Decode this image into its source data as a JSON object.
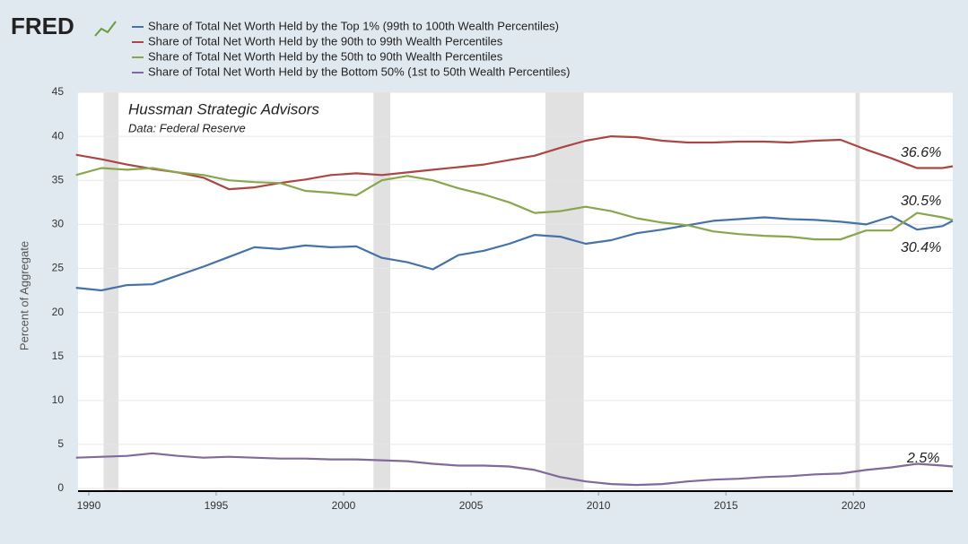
{
  "brand": "FRED",
  "chart_data": {
    "type": "line",
    "legend": "top",
    "subtitle": "Hussman Strategic Advisors",
    "source": "Data: Federal Reserve",
    "ylabel": "Percent of Aggregate",
    "x": [
      1989.5,
      1990.5,
      1991.5,
      1992.5,
      1993.5,
      1994.5,
      1995.5,
      1996.5,
      1997.5,
      1998.5,
      1999.5,
      2000.5,
      2001.5,
      2002.5,
      2003.5,
      2004.5,
      2005.5,
      2006.5,
      2007.5,
      2008.5,
      2009.5,
      2010.5,
      2011.5,
      2012.5,
      2013.5,
      2014.5,
      2015.5,
      2016.5,
      2017.5,
      2018.5,
      2019.5,
      2020.5,
      2021.5,
      2022.5,
      2023.5,
      2023.9
    ],
    "series": [
      {
        "name": "Share of Total Net Worth Held by the Top 1% (99th to 100th Wealth Percentiles)",
        "color": "#4572a7",
        "values": [
          22.8,
          22.5,
          23.1,
          23.2,
          24.2,
          25.2,
          26.3,
          27.4,
          27.2,
          27.6,
          27.4,
          27.5,
          26.2,
          25.7,
          24.9,
          26.5,
          27.0,
          27.8,
          28.8,
          28.6,
          27.8,
          28.2,
          29.0,
          29.4,
          29.9,
          30.4,
          30.6,
          30.8,
          30.6,
          30.5,
          30.3,
          30.0,
          30.9,
          29.4,
          29.8,
          30.4
        ]
      },
      {
        "name": "Share of Total Net Worth Held by the 90th to 99th Wealth Percentiles",
        "color": "#aa4643",
        "values": [
          37.9,
          37.4,
          36.8,
          36.3,
          35.9,
          35.3,
          34.0,
          34.2,
          34.7,
          35.1,
          35.6,
          35.8,
          35.6,
          35.9,
          36.2,
          36.5,
          36.8,
          37.3,
          37.8,
          38.7,
          39.5,
          40.0,
          39.9,
          39.5,
          39.3,
          39.3,
          39.4,
          39.4,
          39.3,
          39.5,
          39.6,
          38.5,
          37.5,
          36.4,
          36.4,
          36.6
        ]
      },
      {
        "name": "Share of Total Net Worth Held by the 50th to 90th Wealth Percentiles",
        "color": "#89a54e",
        "values": [
          35.6,
          36.4,
          36.2,
          36.4,
          35.9,
          35.6,
          35.0,
          34.8,
          34.7,
          33.8,
          33.6,
          33.3,
          35.0,
          35.5,
          35.0,
          34.1,
          33.4,
          32.5,
          31.3,
          31.5,
          32.0,
          31.5,
          30.7,
          30.2,
          29.9,
          29.2,
          28.9,
          28.7,
          28.6,
          28.3,
          28.3,
          29.3,
          29.3,
          31.3,
          30.8,
          30.5
        ]
      },
      {
        "name": "Share of Total Net Worth Held by the Bottom 50% (1st to 50th Wealth Percentiles)",
        "color": "#80699b",
        "values": [
          3.5,
          3.6,
          3.7,
          4.0,
          3.7,
          3.5,
          3.6,
          3.5,
          3.4,
          3.4,
          3.3,
          3.3,
          3.2,
          3.1,
          2.8,
          2.6,
          2.6,
          2.5,
          2.1,
          1.3,
          0.8,
          0.5,
          0.4,
          0.5,
          0.8,
          1.0,
          1.1,
          1.3,
          1.4,
          1.6,
          1.7,
          2.1,
          2.4,
          2.8,
          2.6,
          2.5
        ]
      }
    ],
    "annotations": [
      "36.6%",
      "30.5%",
      "30.4%",
      "2.5%"
    ],
    "recessions": [
      [
        1990.58,
        1991.17
      ],
      [
        2001.17,
        2001.83
      ],
      [
        2007.92,
        2009.42
      ],
      [
        2020.08,
        2020.25
      ]
    ],
    "xlim": [
      1989.58,
      2023.9
    ],
    "xticks": [
      1990,
      1995,
      2000,
      2005,
      2010,
      2015,
      2020
    ],
    "ylim": [
      -0.3,
      45
    ],
    "yticks": [
      0,
      5,
      10,
      15,
      20,
      25,
      30,
      35,
      40,
      45
    ],
    "grid": true
  }
}
